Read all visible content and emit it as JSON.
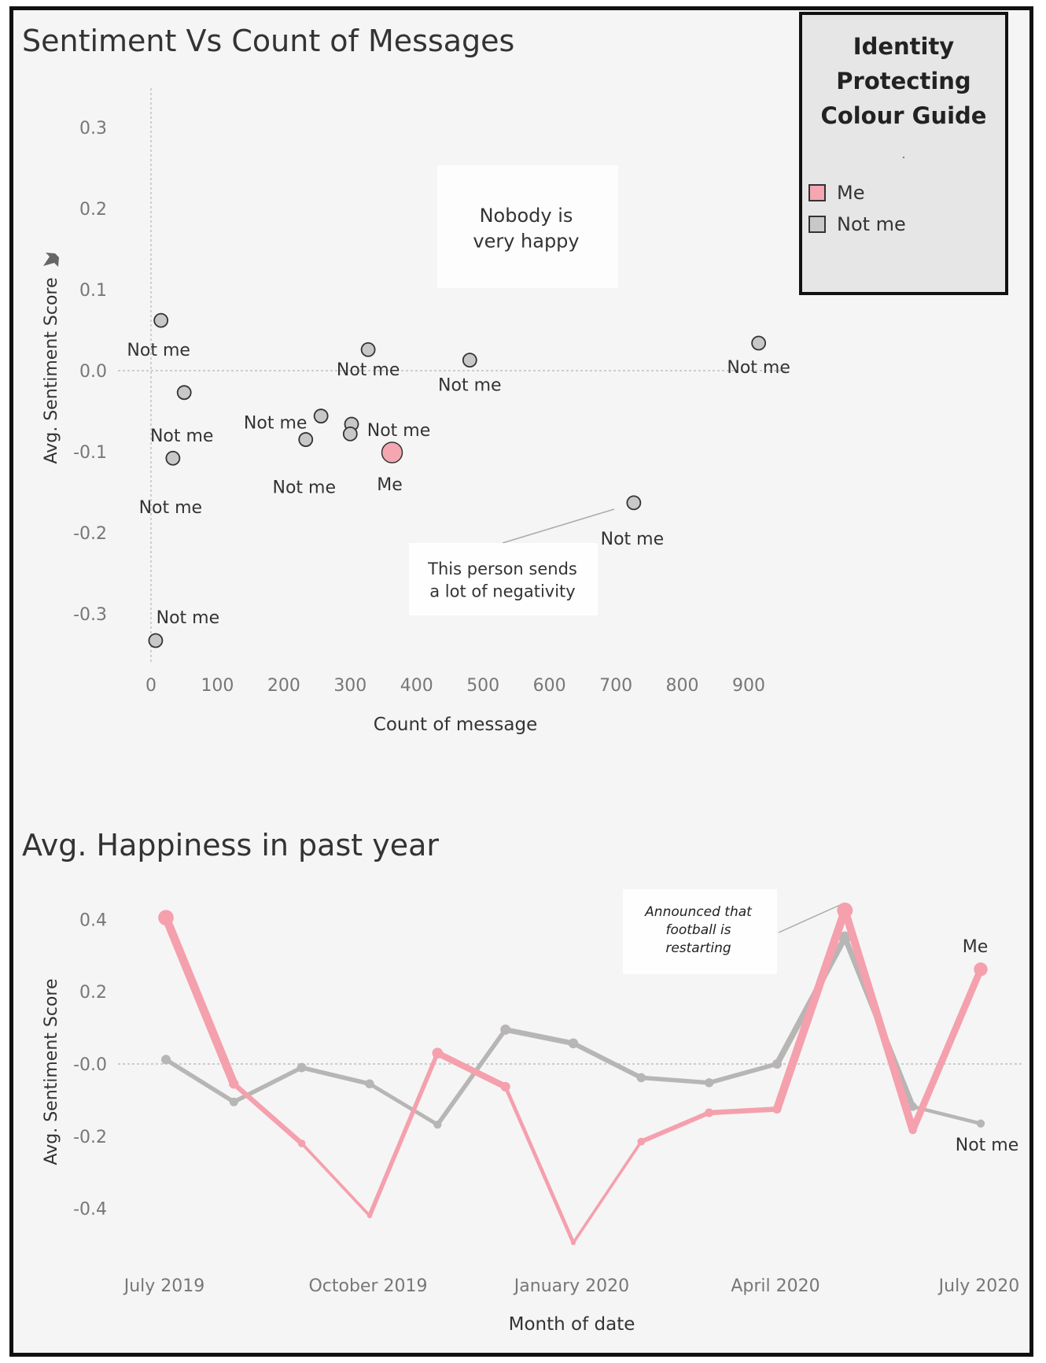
{
  "colors": {
    "me": "#f4a7b1",
    "not_me": "#c8c8c8",
    "outline": "#333333",
    "me_line": "#f5a0ad",
    "not_me_line": "#b8b5b5"
  },
  "legend": {
    "title": "Identity\nProtecting\nColour Guide",
    "dot": ".",
    "items": [
      {
        "label": "Me"
      },
      {
        "label": "Not me"
      }
    ]
  },
  "chart_data": [
    {
      "type": "scatter",
      "title": "Sentiment Vs Count of Messages",
      "xlabel": "Count of message",
      "ylabel": "Avg. Sentiment Score",
      "xlim": [
        0,
        900
      ],
      "ylim": [
        -0.35,
        0.35
      ],
      "x_ticks": [
        0,
        100,
        200,
        300,
        400,
        500,
        600,
        700,
        800,
        900
      ],
      "y_ticks": [
        "0.3",
        "0.2",
        "0.1",
        "0.0",
        "-0.1",
        "-0.2",
        "-0.3"
      ],
      "points": [
        {
          "x": 15,
          "y": 0.062,
          "label": "Not me"
        },
        {
          "x": 50,
          "y": -0.027,
          "label": "Not me"
        },
        {
          "x": 33,
          "y": -0.108,
          "label": "Not me"
        },
        {
          "x": 7,
          "y": -0.333,
          "label": "Not me"
        },
        {
          "x": 256,
          "y": -0.056,
          "label": "Not me"
        },
        {
          "x": 233,
          "y": -0.085,
          "label": "Not me"
        },
        {
          "x": 302,
          "y": -0.066,
          "label": "Not me"
        },
        {
          "x": 300,
          "y": -0.078,
          "label": ""
        },
        {
          "x": 327,
          "y": 0.026,
          "label": "Not me"
        },
        {
          "x": 480,
          "y": 0.013,
          "label": "Not me"
        },
        {
          "x": 727,
          "y": -0.163,
          "label": "Not me"
        },
        {
          "x": 915,
          "y": 0.034,
          "label": "Not me"
        },
        {
          "x": 363,
          "y": -0.101,
          "label": "Me"
        }
      ],
      "annotations": [
        {
          "text": "Nobody is\nvery happy"
        },
        {
          "text": "This person sends\na lot of negativity"
        }
      ]
    },
    {
      "type": "line",
      "title": "Avg. Happiness in past year",
      "xlabel": "Month of date",
      "ylabel": "Avg. Sentiment Score",
      "x": [
        "2019-07",
        "2019-08",
        "2019-09",
        "2019-10",
        "2019-11",
        "2019-12",
        "2020-01",
        "2020-02",
        "2020-03",
        "2020-04",
        "2020-05",
        "2020-06",
        "2020-07"
      ],
      "x_tick_labels": [
        "July 2019",
        "October 2019",
        "January 2020",
        "April 2020",
        "July 2020"
      ],
      "y_ticks": [
        "0.4",
        "0.2",
        "-0.0",
        "-0.2",
        "-0.4"
      ],
      "ylim": [
        -0.5,
        0.5
      ],
      "series": [
        {
          "name": "Me",
          "values": [
            0.405,
            -0.055,
            -0.22,
            -0.42,
            0.03,
            -0.063,
            -0.495,
            -0.215,
            -0.135,
            -0.125,
            0.425,
            -0.183,
            0.262
          ]
        },
        {
          "name": "Not me",
          "values": [
            0.012,
            -0.105,
            -0.01,
            -0.055,
            -0.168,
            0.095,
            0.057,
            -0.038,
            -0.052,
            0.0,
            0.35,
            -0.118,
            -0.165
          ]
        }
      ],
      "annotations": [
        {
          "text": "Announced that\nfootball is\nrestarting"
        }
      ]
    }
  ]
}
